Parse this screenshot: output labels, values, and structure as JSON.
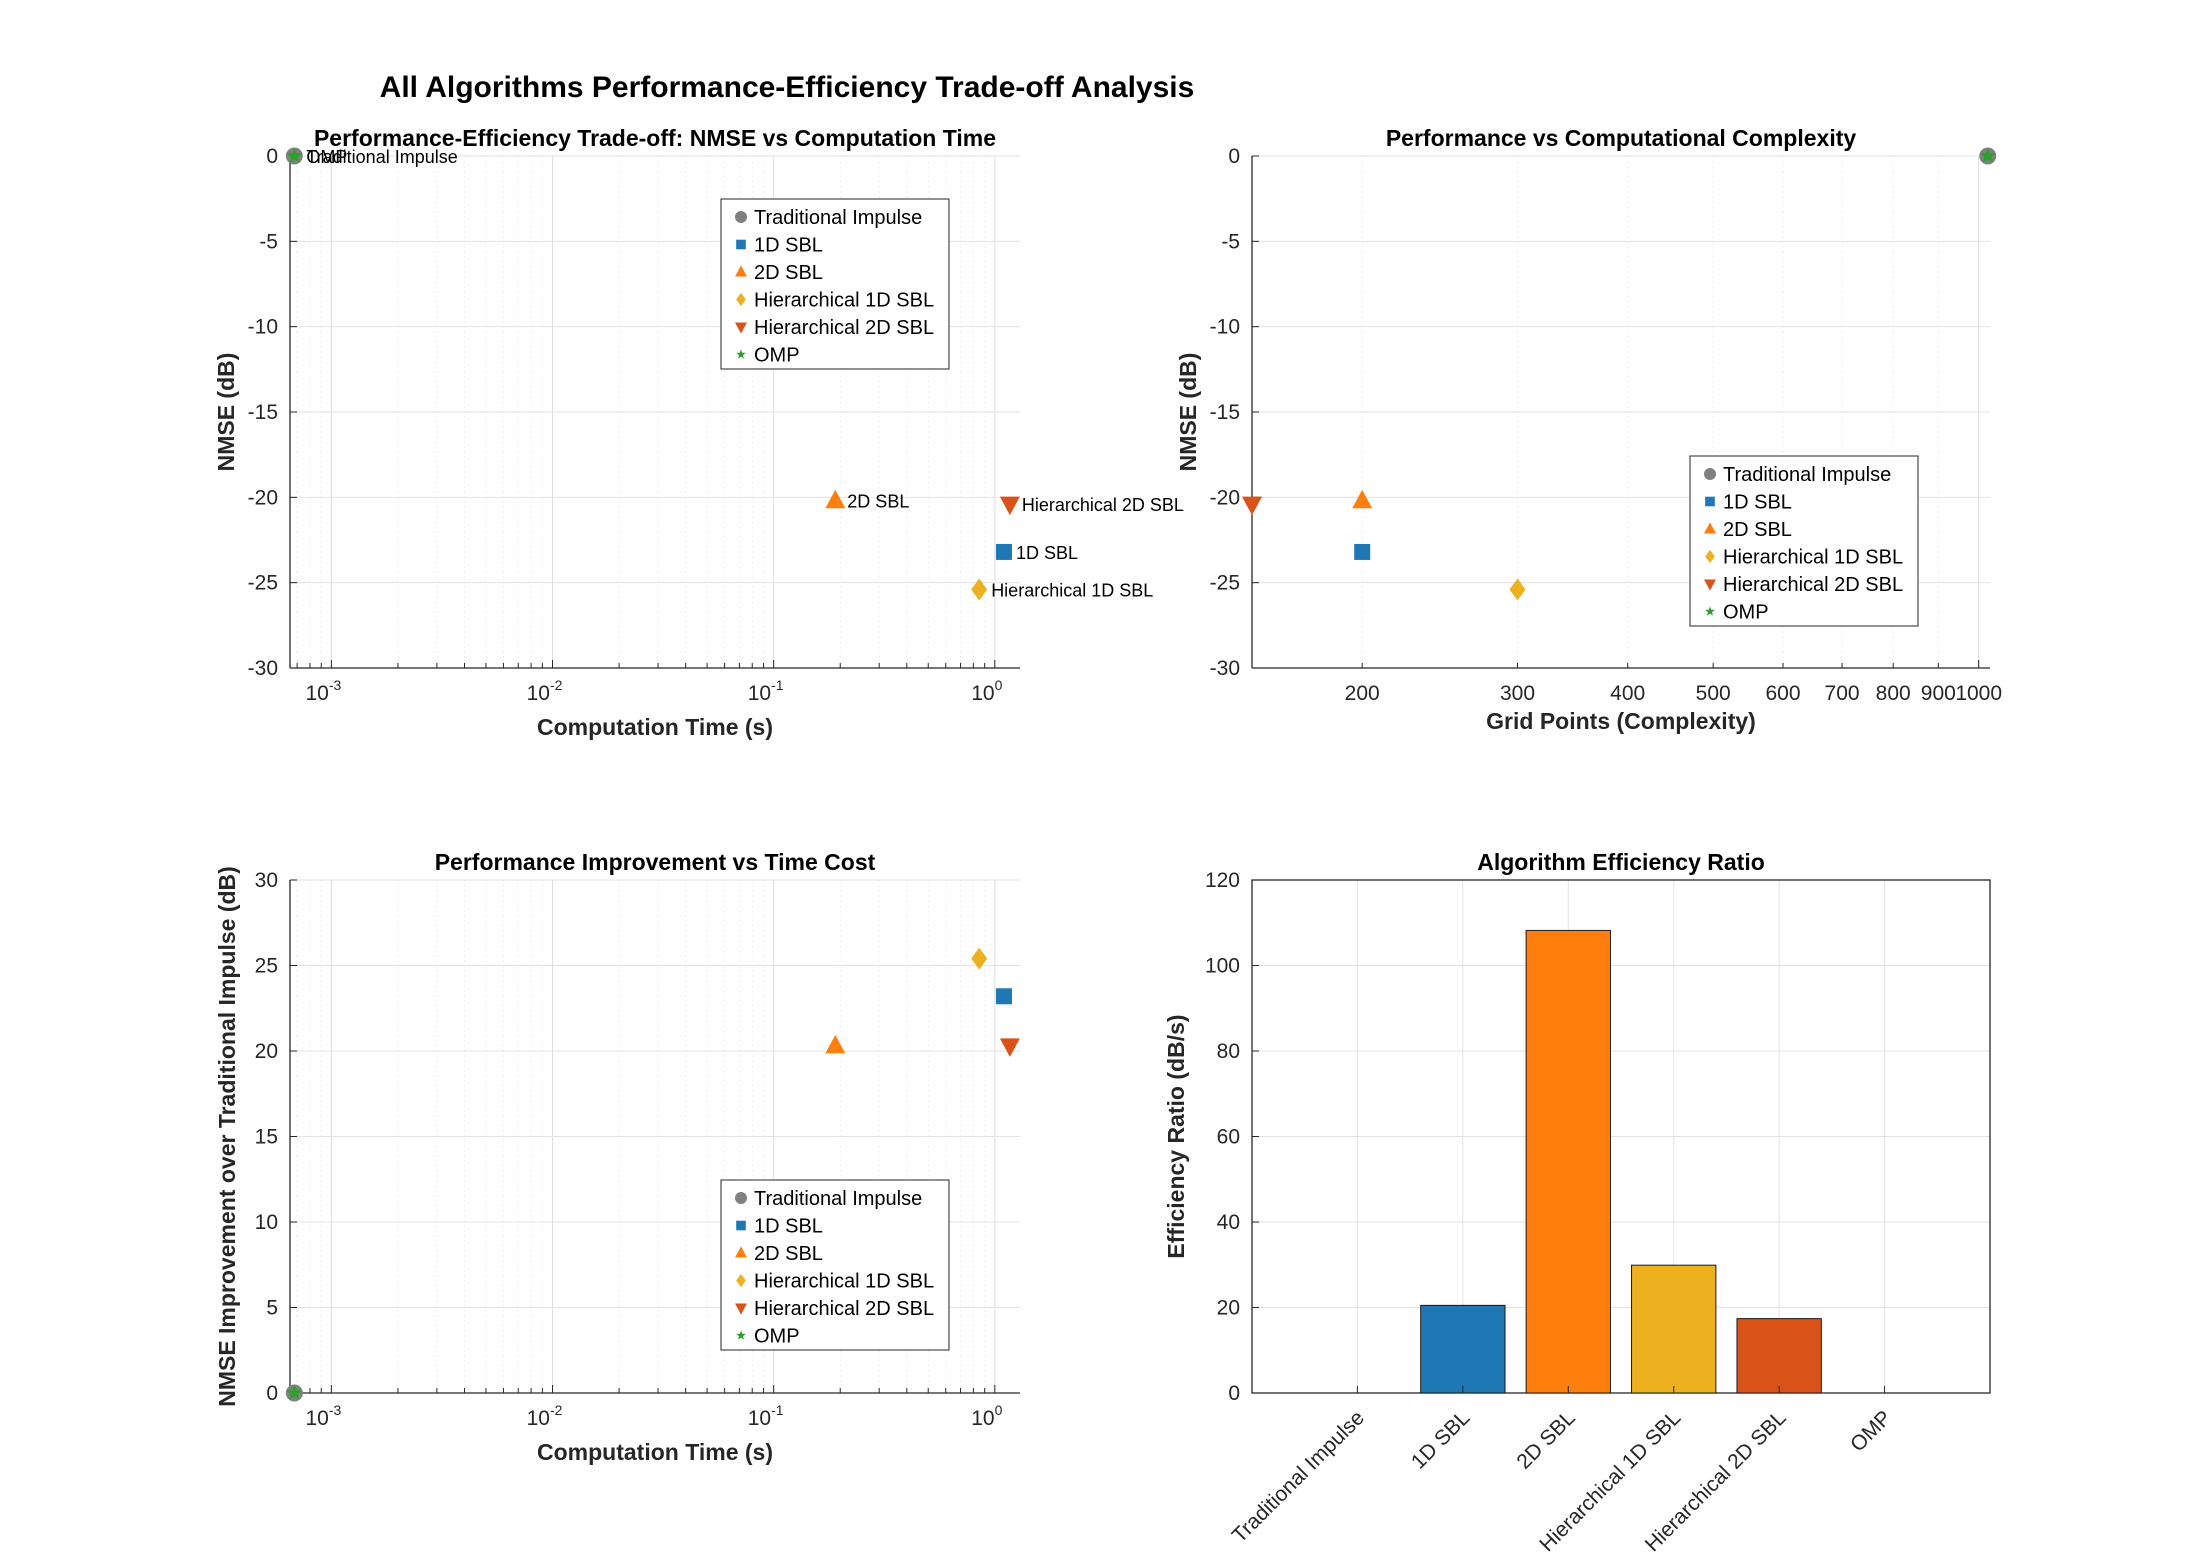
{
  "figure": {
    "title": "All Algorithms Performance-Efficiency Trade-off Analysis"
  },
  "legend_entries": [
    "Traditional Impulse",
    "1D SBL",
    "2D SBL",
    "Hierarchical 1D SBL",
    "Hierarchical 2D SBL",
    "OMP"
  ],
  "colors": {
    "Traditional Impulse": "#808080",
    "1D SBL": "#1f77b4",
    "2D SBL": "#ff7f0e",
    "Hierarchical 1D SBL": "#edb120",
    "Hierarchical 2D SBL": "#d95319",
    "OMP": "#2ca02c",
    "grid": "#e6e6e6",
    "axis": "#262626"
  },
  "chart_data": [
    {
      "type": "scatter",
      "title": "Performance-Efficiency Trade-off: NMSE vs Computation Time",
      "xlabel": "Computation Time (s)",
      "ylabel": "NMSE (dB)",
      "xscale": "log",
      "xlim": [
        0.00065,
        1.3
      ],
      "ylim": [
        -30,
        0
      ],
      "xticks": [
        {
          "base": "10",
          "exp": "-3"
        },
        {
          "base": "10",
          "exp": "-2"
        },
        {
          "base": "10",
          "exp": "-1"
        },
        {
          "base": "10",
          "exp": "0"
        }
      ],
      "yticks": [
        "0",
        "-5",
        "-10",
        "-15",
        "-20",
        "-25",
        "-30"
      ],
      "grid": true,
      "legend": "top-right",
      "series": [
        {
          "name": "Traditional Impulse",
          "marker": "circle",
          "x": 0.00068,
          "y": 0,
          "label": "Traditional Impulse"
        },
        {
          "name": "1D SBL",
          "marker": "square",
          "x": 1.1,
          "y": -23.2,
          "label": "1D SBL"
        },
        {
          "name": "2D SBL",
          "marker": "triangle-up",
          "x": 0.19,
          "y": -20.2,
          "label": "2D SBL"
        },
        {
          "name": "Hierarchical 1D SBL",
          "marker": "diamond",
          "x": 0.85,
          "y": -25.4,
          "label": "Hierarchical 1D SBL"
        },
        {
          "name": "Hierarchical 2D SBL",
          "marker": "triangle-down",
          "x": 1.17,
          "y": -20.4,
          "label": "Hierarchical 2D SBL"
        },
        {
          "name": "OMP",
          "marker": "star",
          "x": 0.00068,
          "y": 0,
          "label": "OMP"
        }
      ]
    },
    {
      "type": "scatter",
      "title": "Performance vs Computational Complexity",
      "xlabel": "Grid Points (Complexity)",
      "ylabel": "NMSE (dB)",
      "xscale": "log",
      "xlim": [
        150,
        1030
      ],
      "ylim": [
        -30,
        0
      ],
      "xticks": [
        "200",
        "300",
        "400",
        "500",
        "600",
        "700",
        "800",
        "900",
        "1000"
      ],
      "yticks": [
        "0",
        "-5",
        "-10",
        "-15",
        "-20",
        "-25",
        "-30"
      ],
      "grid": true,
      "legend": "bottom-right",
      "series": [
        {
          "name": "Traditional Impulse",
          "marker": "circle",
          "x": 1024,
          "y": 0
        },
        {
          "name": "1D SBL",
          "marker": "square",
          "x": 200,
          "y": -23.2
        },
        {
          "name": "2D SBL",
          "marker": "triangle-up",
          "x": 200,
          "y": -20.2
        },
        {
          "name": "Hierarchical 1D SBL",
          "marker": "diamond",
          "x": 300,
          "y": -25.4
        },
        {
          "name": "Hierarchical 2D SBL",
          "marker": "triangle-down",
          "x": 150,
          "y": -20.4
        },
        {
          "name": "OMP",
          "marker": "star",
          "x": 1024,
          "y": 0
        }
      ]
    },
    {
      "type": "scatter",
      "title": "Performance Improvement vs Time Cost",
      "xlabel": "Computation Time (s)",
      "ylabel": "NMSE Improvement over Traditional Impulse (dB)",
      "xscale": "log",
      "xlim": [
        0.00065,
        1.3
      ],
      "ylim": [
        0,
        30
      ],
      "xticks": [
        {
          "base": "10",
          "exp": "-3"
        },
        {
          "base": "10",
          "exp": "-2"
        },
        {
          "base": "10",
          "exp": "-1"
        },
        {
          "base": "10",
          "exp": "0"
        }
      ],
      "yticks": [
        "30",
        "25",
        "20",
        "15",
        "10",
        "5",
        "0"
      ],
      "grid": true,
      "legend": "bottom-right",
      "series": [
        {
          "name": "Traditional Impulse",
          "marker": "circle",
          "x": 0.00068,
          "y": 0
        },
        {
          "name": "1D SBL",
          "marker": "square",
          "x": 1.1,
          "y": 23.2
        },
        {
          "name": "2D SBL",
          "marker": "triangle-up",
          "x": 0.19,
          "y": 20.3
        },
        {
          "name": "Hierarchical 1D SBL",
          "marker": "diamond",
          "x": 0.85,
          "y": 25.4
        },
        {
          "name": "Hierarchical 2D SBL",
          "marker": "triangle-down",
          "x": 1.17,
          "y": 20.3
        },
        {
          "name": "OMP",
          "marker": "star",
          "x": 0.00068,
          "y": 0
        }
      ]
    },
    {
      "type": "bar",
      "title": "Algorithm Efficiency Ratio",
      "xlabel": "",
      "ylabel": "Efficiency Ratio (dB/s)",
      "ylim": [
        0,
        120
      ],
      "yticks": [
        "120",
        "100",
        "80",
        "60",
        "40",
        "20",
        "0"
      ],
      "grid": true,
      "categories": [
        "Traditional Impulse",
        "1D SBL",
        "2D SBL",
        "Hierarchical 1D SBL",
        "Hierarchical 2D SBL",
        "OMP"
      ],
      "values": [
        0,
        20.5,
        108.2,
        29.9,
        17.4,
        0
      ]
    }
  ]
}
